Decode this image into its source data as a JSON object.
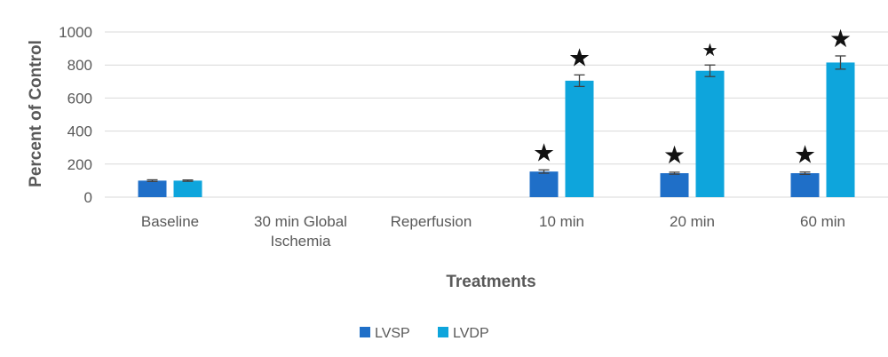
{
  "chart_data": {
    "type": "bar",
    "categories": [
      [
        "Baseline"
      ],
      [
        "30 min Global",
        "Ischemia"
      ],
      [
        "Reperfusion"
      ],
      [
        "10 min"
      ],
      [
        "20 min"
      ],
      [
        "60 min"
      ]
    ],
    "series": [
      {
        "name": "LVSP",
        "color": "#1f6fc8",
        "values": [
          100,
          null,
          null,
          155,
          145,
          145
        ],
        "errors": [
          5,
          null,
          null,
          10,
          6,
          7
        ],
        "significant": [
          false,
          false,
          false,
          true,
          true,
          true
        ]
      },
      {
        "name": "LVDP",
        "color": "#0ea5dc",
        "values": [
          100,
          null,
          null,
          705,
          765,
          815
        ],
        "errors": [
          4,
          null,
          null,
          35,
          35,
          40
        ],
        "significant": [
          false,
          false,
          false,
          true,
          true,
          true
        ]
      }
    ],
    "significance_marker": "★",
    "xlabel": "Treatments",
    "ylabel": "Percent of Control",
    "ylim": [
      0,
      1000
    ],
    "yticks": [
      0,
      200,
      400,
      600,
      800,
      1000
    ],
    "grid": true,
    "legend_position": "bottom-center"
  }
}
